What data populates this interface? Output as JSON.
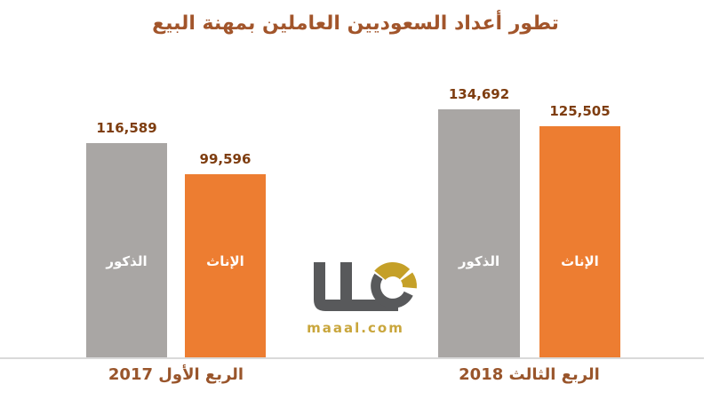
{
  "chart_data": {
    "type": "bar",
    "title": "تطور أعداد السعوديين العاملين بمهنة البيع",
    "categories": [
      "الربع الأول 2017",
      "الربع الثالث 2018"
    ],
    "series": [
      {
        "name": "الذكور",
        "values": [
          116589,
          134692
        ],
        "display_values": [
          "116,589",
          "134,692"
        ],
        "color": "#A9A6A4"
      },
      {
        "name": "الإناث",
        "values": [
          99596,
          125505
        ],
        "display_values": [
          "99,596",
          "125,505"
        ],
        "color": "#ED7D31"
      }
    ],
    "xlabel": "",
    "ylabel": "",
    "ylim": [
      0,
      171000
    ],
    "grid": false,
    "legend_position": "inside-bars",
    "value_labels_shown": true
  },
  "watermark": {
    "brand_text": "maaal.com"
  },
  "colors": {
    "bar_males": "#A9A6A4",
    "bar_females": "#ED7D31",
    "title_text": "#A2552B",
    "value_text": "#7E3D10",
    "category_text": "#99552B",
    "axis_line": "#D9D9D9",
    "logo_gray": "#58595B",
    "logo_gold": "#C5A028",
    "brand_text_color": "#C9A63C"
  }
}
